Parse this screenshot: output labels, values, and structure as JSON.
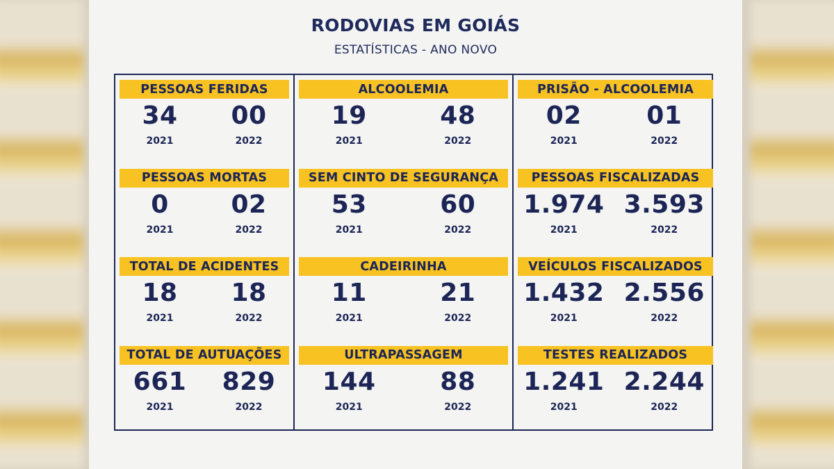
{
  "title": "RODOVIAS EM GOIÁS",
  "subtitle": "ESTATÍSTICAS - ANO NOVO",
  "year_a": "2021",
  "year_b": "2022",
  "colors": {
    "navy": "#1c2556",
    "yellow": "#f7c222",
    "background": "#f4f4f2"
  },
  "cells": [
    {
      "label": "PESSOAS FERIDAS",
      "v2021": "34",
      "v2022": "00"
    },
    {
      "label": "ALCOOLEMIA",
      "v2021": "19",
      "v2022": "48"
    },
    {
      "label": "PRISÃO - ALCOOLEMIA",
      "v2021": "02",
      "v2022": "01"
    },
    {
      "label": "PESSOAS MORTAS",
      "v2021": "0",
      "v2022": "02"
    },
    {
      "label": "SEM CINTO DE SEGURANÇA",
      "v2021": "53",
      "v2022": "60"
    },
    {
      "label": "PESSOAS FISCALIZADAS",
      "v2021": "1.974",
      "v2022": "3.593"
    },
    {
      "label": "TOTAL DE ACIDENTES",
      "v2021": "18",
      "v2022": "18"
    },
    {
      "label": "CADEIRINHA",
      "v2021": "11",
      "v2022": "21"
    },
    {
      "label": "VEÍCULOS FISCALIZADOS",
      "v2021": "1.432",
      "v2022": "2.556"
    },
    {
      "label": "TOTAL DE AUTUAÇÕES",
      "v2021": "661",
      "v2022": "829"
    },
    {
      "label": "ULTRAPASSAGEM",
      "v2021": "144",
      "v2022": "88"
    },
    {
      "label": "TESTES REALIZADOS",
      "v2021": "1.241",
      "v2022": "2.244"
    }
  ]
}
